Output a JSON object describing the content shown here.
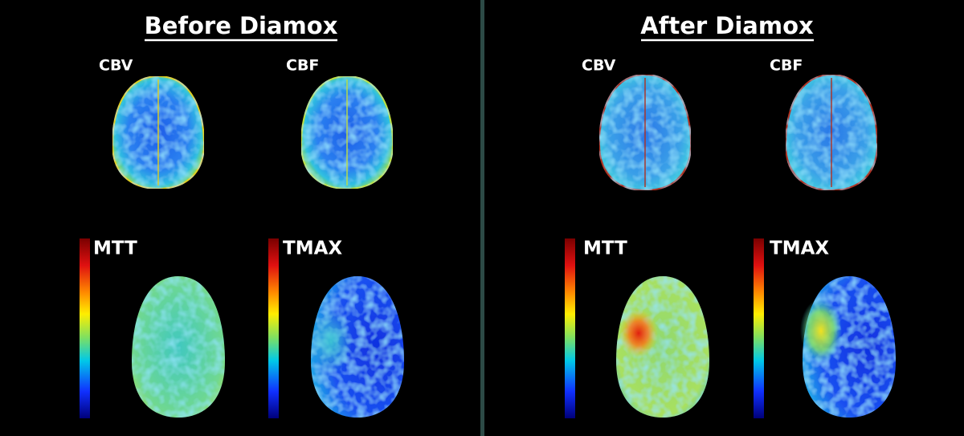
{
  "panels": [
    {
      "title": "Before Diamox",
      "maps": [
        "CBV",
        "CBF",
        "MTT",
        "TMAX"
      ]
    },
    {
      "title": "After Diamox",
      "maps": [
        "CBV",
        "CBF",
        "MTT",
        "TMAX"
      ]
    }
  ]
}
